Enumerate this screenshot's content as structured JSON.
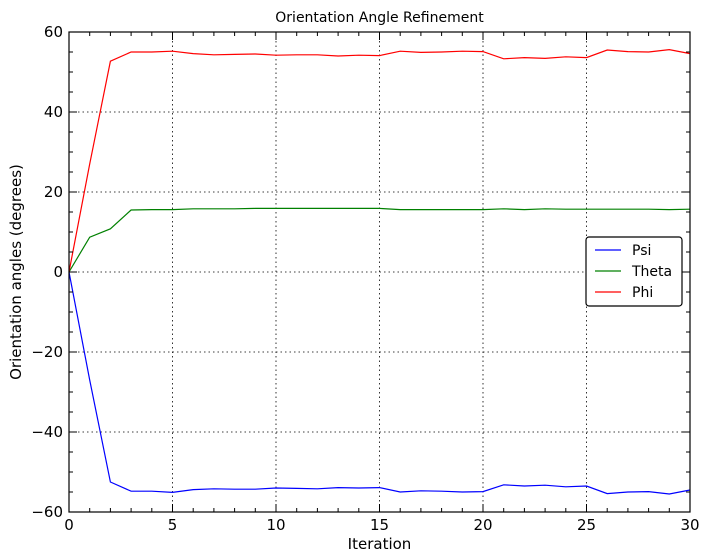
{
  "chart_data": {
    "type": "line",
    "title": "Orientation Angle Refinement",
    "xlabel": "Iteration",
    "ylabel": "Orientation angles (degrees)",
    "xlim": [
      0,
      30
    ],
    "ylim": [
      -60,
      60
    ],
    "xticks": [
      0,
      5,
      10,
      15,
      20,
      25,
      30
    ],
    "yticks": [
      -60,
      -40,
      -20,
      0,
      20,
      40,
      60
    ],
    "xtick_labels": [
      "0",
      "5",
      "10",
      "15",
      "20",
      "25",
      "30"
    ],
    "ytick_labels": [
      "−60",
      "−40",
      "−20",
      "0",
      "20",
      "40",
      "60"
    ],
    "grid": true,
    "legend_position": "right",
    "x": [
      0,
      1,
      2,
      3,
      4,
      5,
      6,
      7,
      8,
      9,
      10,
      11,
      12,
      13,
      14,
      15,
      16,
      17,
      18,
      19,
      20,
      21,
      22,
      23,
      24,
      25,
      26,
      27,
      28,
      29,
      30
    ],
    "series": [
      {
        "name": "Psi",
        "color": "#0000ff",
        "values": [
          0,
          -27,
          -52.5,
          -54.8,
          -54.8,
          -55.1,
          -54.4,
          -54.2,
          -54.3,
          -54.3,
          -54.0,
          -54.1,
          -54.2,
          -53.9,
          -54.0,
          -53.9,
          -55.0,
          -54.7,
          -54.8,
          -55.0,
          -54.9,
          -53.2,
          -53.5,
          -53.3,
          -53.7,
          -53.5,
          -55.4,
          -55.0,
          -54.9,
          -55.5,
          -54.5
        ]
      },
      {
        "name": "Theta",
        "color": "#008000",
        "values": [
          0,
          8.7,
          10.8,
          15.5,
          15.6,
          15.6,
          15.8,
          15.8,
          15.8,
          15.9,
          15.9,
          15.9,
          15.9,
          15.9,
          15.9,
          15.9,
          15.6,
          15.6,
          15.6,
          15.6,
          15.6,
          15.8,
          15.6,
          15.8,
          15.7,
          15.7,
          15.7,
          15.7,
          15.7,
          15.6,
          15.7
        ]
      },
      {
        "name": "Phi",
        "color": "#ff0000",
        "values": [
          0,
          27,
          52.7,
          55.0,
          55.0,
          55.2,
          54.6,
          54.3,
          54.4,
          54.5,
          54.2,
          54.3,
          54.3,
          54.0,
          54.2,
          54.1,
          55.2,
          54.9,
          55.0,
          55.2,
          55.1,
          53.3,
          53.6,
          53.4,
          53.8,
          53.6,
          55.5,
          55.1,
          55.0,
          55.6,
          54.6
        ]
      }
    ]
  }
}
